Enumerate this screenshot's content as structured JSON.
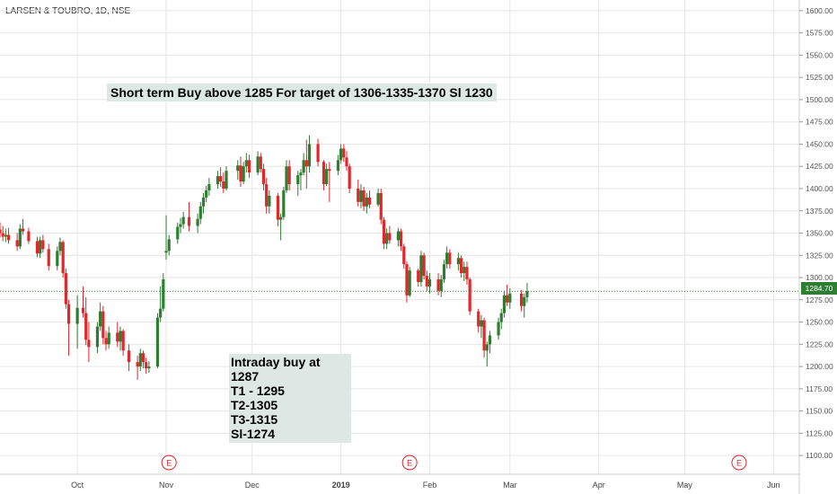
{
  "header": {
    "symbol": "LARSEN & TOUBRO, 1D, NSE"
  },
  "annotations": {
    "top_note": "Short term Buy above 1285 For target of 1306-1335-1370 Sl 1230",
    "intraday_lines": [
      "Intraday buy at 1287",
      "T1 - 1295",
      "T2-1305",
      "T3-1315",
      "Sl-1274"
    ]
  },
  "earnings_markers": [
    {
      "label": "E",
      "date": "2018-11-02"
    },
    {
      "label": "E",
      "date": "2019-01-25"
    },
    {
      "label": "E",
      "date": "2019-05-20"
    }
  ],
  "last_price": {
    "label": "1284.70",
    "value": 1284.7
  },
  "colors": {
    "up": "#2e7d32",
    "down": "#e3262a",
    "earnings": "#e3262a",
    "grid": "#e6e6e6"
  },
  "chart_data": {
    "type": "candlestick",
    "title": "",
    "ylim": [
      1085,
      1612
    ],
    "yticks": [
      "1100.00",
      "1125.00",
      "1150.00",
      "1175.00",
      "1200.00",
      "1225.00",
      "1250.00",
      "1275.00",
      "1300.00",
      "1325.00",
      "1350.00",
      "1375.00",
      "1400.00",
      "1425.00",
      "1450.00",
      "1475.00",
      "1500.00",
      "1525.00",
      "1550.00",
      "1575.00",
      "1600.00"
    ],
    "xticks": [
      {
        "label": "Oct",
        "date": "2018-10-01"
      },
      {
        "label": "Nov",
        "date": "2018-11-01"
      },
      {
        "label": "Dec",
        "date": "2018-12-01"
      },
      {
        "label": "2019",
        "date": "2019-01-01"
      },
      {
        "label": "Feb",
        "date": "2019-02-01"
      },
      {
        "label": "Mar",
        "date": "2019-03-01"
      },
      {
        "label": "Apr",
        "date": "2019-04-01"
      },
      {
        "label": "May",
        "date": "2019-05-01"
      },
      {
        "label": "Jun",
        "date": "2019-06-01"
      }
    ],
    "x_range": [
      "2018-09-04",
      "2019-06-10"
    ],
    "grid": true,
    "horizontal_line": 1284.7,
    "candles": [
      {
        "date": "2018-09-04",
        "o": 1354,
        "h": 1362,
        "l": 1345,
        "c": 1350
      },
      {
        "date": "2018-09-05",
        "o": 1350,
        "h": 1358,
        "l": 1341,
        "c": 1346
      },
      {
        "date": "2018-09-06",
        "o": 1346,
        "h": 1355,
        "l": 1340,
        "c": 1348
      },
      {
        "date": "2018-09-07",
        "o": 1348,
        "h": 1356,
        "l": 1338,
        "c": 1342
      },
      {
        "date": "2018-09-10",
        "o": 1342,
        "h": 1350,
        "l": 1330,
        "c": 1335
      },
      {
        "date": "2018-09-11",
        "o": 1335,
        "h": 1360,
        "l": 1332,
        "c": 1355
      },
      {
        "date": "2018-09-12",
        "o": 1355,
        "h": 1366,
        "l": 1348,
        "c": 1352
      },
      {
        "date": "2018-09-14",
        "o": 1352,
        "h": 1356,
        "l": 1338,
        "c": 1341
      },
      {
        "date": "2018-09-17",
        "o": 1341,
        "h": 1346,
        "l": 1323,
        "c": 1327
      },
      {
        "date": "2018-09-18",
        "o": 1327,
        "h": 1346,
        "l": 1322,
        "c": 1342
      },
      {
        "date": "2018-09-19",
        "o": 1342,
        "h": 1348,
        "l": 1328,
        "c": 1332
      },
      {
        "date": "2018-09-21",
        "o": 1332,
        "h": 1338,
        "l": 1308,
        "c": 1313
      },
      {
        "date": "2018-09-24",
        "o": 1313,
        "h": 1335,
        "l": 1308,
        "c": 1330
      },
      {
        "date": "2018-09-25",
        "o": 1330,
        "h": 1345,
        "l": 1325,
        "c": 1340
      },
      {
        "date": "2018-09-26",
        "o": 1340,
        "h": 1342,
        "l": 1300,
        "c": 1305
      },
      {
        "date": "2018-09-27",
        "o": 1305,
        "h": 1310,
        "l": 1265,
        "c": 1270
      },
      {
        "date": "2018-09-28",
        "o": 1270,
        "h": 1275,
        "l": 1212,
        "c": 1248
      },
      {
        "date": "2018-10-01",
        "o": 1248,
        "h": 1280,
        "l": 1220,
        "c": 1266
      },
      {
        "date": "2018-10-03",
        "o": 1266,
        "h": 1290,
        "l": 1255,
        "c": 1260
      },
      {
        "date": "2018-10-04",
        "o": 1260,
        "h": 1278,
        "l": 1224,
        "c": 1230
      },
      {
        "date": "2018-10-05",
        "o": 1230,
        "h": 1250,
        "l": 1205,
        "c": 1222
      },
      {
        "date": "2018-10-08",
        "o": 1222,
        "h": 1250,
        "l": 1215,
        "c": 1245
      },
      {
        "date": "2018-10-09",
        "o": 1245,
        "h": 1272,
        "l": 1240,
        "c": 1262
      },
      {
        "date": "2018-10-10",
        "o": 1262,
        "h": 1268,
        "l": 1225,
        "c": 1232
      },
      {
        "date": "2018-10-11",
        "o": 1232,
        "h": 1240,
        "l": 1218,
        "c": 1225
      },
      {
        "date": "2018-10-12",
        "o": 1225,
        "h": 1245,
        "l": 1220,
        "c": 1238
      },
      {
        "date": "2018-10-15",
        "o": 1238,
        "h": 1250,
        "l": 1222,
        "c": 1228
      },
      {
        "date": "2018-10-16",
        "o": 1228,
        "h": 1245,
        "l": 1218,
        "c": 1240
      },
      {
        "date": "2018-10-17",
        "o": 1240,
        "h": 1242,
        "l": 1212,
        "c": 1218
      },
      {
        "date": "2018-10-19",
        "o": 1218,
        "h": 1225,
        "l": 1195,
        "c": 1205
      },
      {
        "date": "2018-10-22",
        "o": 1205,
        "h": 1212,
        "l": 1185,
        "c": 1200
      },
      {
        "date": "2018-10-23",
        "o": 1200,
        "h": 1220,
        "l": 1195,
        "c": 1215
      },
      {
        "date": "2018-10-24",
        "o": 1215,
        "h": 1218,
        "l": 1198,
        "c": 1205
      },
      {
        "date": "2018-10-25",
        "o": 1205,
        "h": 1210,
        "l": 1192,
        "c": 1198
      },
      {
        "date": "2018-10-26",
        "o": 1198,
        "h": 1206,
        "l": 1193,
        "c": 1200
      },
      {
        "date": "2018-10-29",
        "o": 1200,
        "h": 1260,
        "l": 1198,
        "c": 1255
      },
      {
        "date": "2018-10-30",
        "o": 1255,
        "h": 1290,
        "l": 1250,
        "c": 1265
      },
      {
        "date": "2018-10-31",
        "o": 1265,
        "h": 1305,
        "l": 1262,
        "c": 1298
      },
      {
        "date": "2018-11-01",
        "o": 1328,
        "h": 1370,
        "l": 1320,
        "c": 1330
      },
      {
        "date": "2018-11-02",
        "o": 1330,
        "h": 1348,
        "l": 1325,
        "c": 1343
      },
      {
        "date": "2018-11-05",
        "o": 1343,
        "h": 1362,
        "l": 1338,
        "c": 1357
      },
      {
        "date": "2018-11-06",
        "o": 1357,
        "h": 1367,
        "l": 1350,
        "c": 1360
      },
      {
        "date": "2018-11-07",
        "o": 1360,
        "h": 1374,
        "l": 1355,
        "c": 1368
      },
      {
        "date": "2018-11-09",
        "o": 1368,
        "h": 1385,
        "l": 1352,
        "c": 1358
      },
      {
        "date": "2018-11-12",
        "o": 1358,
        "h": 1372,
        "l": 1350,
        "c": 1366
      },
      {
        "date": "2018-11-13",
        "o": 1366,
        "h": 1385,
        "l": 1360,
        "c": 1380
      },
      {
        "date": "2018-11-14",
        "o": 1380,
        "h": 1395,
        "l": 1372,
        "c": 1390
      },
      {
        "date": "2018-11-15",
        "o": 1390,
        "h": 1403,
        "l": 1385,
        "c": 1398
      },
      {
        "date": "2018-11-16",
        "o": 1398,
        "h": 1412,
        "l": 1392,
        "c": 1405
      },
      {
        "date": "2018-11-19",
        "o": 1405,
        "h": 1420,
        "l": 1400,
        "c": 1414
      },
      {
        "date": "2018-11-20",
        "o": 1414,
        "h": 1424,
        "l": 1402,
        "c": 1408
      },
      {
        "date": "2018-11-21",
        "o": 1408,
        "h": 1418,
        "l": 1395,
        "c": 1400
      },
      {
        "date": "2018-11-22",
        "o": 1400,
        "h": 1425,
        "l": 1398,
        "c": 1420
      },
      {
        "date": "2018-11-26",
        "o": 1420,
        "h": 1432,
        "l": 1410,
        "c": 1426
      },
      {
        "date": "2018-11-27",
        "o": 1426,
        "h": 1436,
        "l": 1402,
        "c": 1408
      },
      {
        "date": "2018-11-28",
        "o": 1408,
        "h": 1430,
        "l": 1405,
        "c": 1425
      },
      {
        "date": "2018-11-29",
        "o": 1425,
        "h": 1440,
        "l": 1418,
        "c": 1432
      },
      {
        "date": "2018-11-30",
        "o": 1432,
        "h": 1438,
        "l": 1412,
        "c": 1418
      },
      {
        "date": "2018-12-03",
        "o": 1418,
        "h": 1442,
        "l": 1415,
        "c": 1436
      },
      {
        "date": "2018-12-04",
        "o": 1436,
        "h": 1440,
        "l": 1418,
        "c": 1422
      },
      {
        "date": "2018-12-05",
        "o": 1422,
        "h": 1428,
        "l": 1398,
        "c": 1405
      },
      {
        "date": "2018-12-06",
        "o": 1405,
        "h": 1412,
        "l": 1372,
        "c": 1380
      },
      {
        "date": "2018-12-07",
        "o": 1380,
        "h": 1398,
        "l": 1372,
        "c": 1392
      },
      {
        "date": "2018-12-10",
        "o": 1392,
        "h": 1395,
        "l": 1358,
        "c": 1365
      },
      {
        "date": "2018-12-11",
        "o": 1365,
        "h": 1372,
        "l": 1342,
        "c": 1368
      },
      {
        "date": "2018-12-12",
        "o": 1368,
        "h": 1402,
        "l": 1365,
        "c": 1398
      },
      {
        "date": "2018-12-13",
        "o": 1398,
        "h": 1432,
        "l": 1395,
        "c": 1425
      },
      {
        "date": "2018-12-14",
        "o": 1425,
        "h": 1432,
        "l": 1398,
        "c": 1405
      },
      {
        "date": "2018-12-17",
        "o": 1405,
        "h": 1420,
        "l": 1392,
        "c": 1415
      },
      {
        "date": "2018-12-18",
        "o": 1415,
        "h": 1422,
        "l": 1398,
        "c": 1418
      },
      {
        "date": "2018-12-19",
        "o": 1418,
        "h": 1440,
        "l": 1415,
        "c": 1432
      },
      {
        "date": "2018-12-20",
        "o": 1432,
        "h": 1455,
        "l": 1400,
        "c": 1425
      },
      {
        "date": "2018-12-21",
        "o": 1425,
        "h": 1460,
        "l": 1418,
        "c": 1450
      },
      {
        "date": "2018-12-24",
        "o": 1450,
        "h": 1456,
        "l": 1425,
        "c": 1430
      },
      {
        "date": "2018-12-26",
        "o": 1430,
        "h": 1432,
        "l": 1398,
        "c": 1405
      },
      {
        "date": "2018-12-27",
        "o": 1405,
        "h": 1428,
        "l": 1403,
        "c": 1422
      },
      {
        "date": "2018-12-28",
        "o": 1422,
        "h": 1430,
        "l": 1385,
        "c": 1420
      },
      {
        "date": "2018-12-31",
        "o": 1420,
        "h": 1438,
        "l": 1415,
        "c": 1432
      },
      {
        "date": "2019-01-01",
        "o": 1432,
        "h": 1450,
        "l": 1428,
        "c": 1445
      },
      {
        "date": "2019-01-02",
        "o": 1445,
        "h": 1450,
        "l": 1430,
        "c": 1435
      },
      {
        "date": "2019-01-03",
        "o": 1435,
        "h": 1442,
        "l": 1420,
        "c": 1425
      },
      {
        "date": "2019-01-04",
        "o": 1425,
        "h": 1428,
        "l": 1395,
        "c": 1400
      },
      {
        "date": "2019-01-07",
        "o": 1400,
        "h": 1410,
        "l": 1380,
        "c": 1385
      },
      {
        "date": "2019-01-08",
        "o": 1385,
        "h": 1405,
        "l": 1378,
        "c": 1398
      },
      {
        "date": "2019-01-09",
        "o": 1398,
        "h": 1402,
        "l": 1375,
        "c": 1380
      },
      {
        "date": "2019-01-10",
        "o": 1380,
        "h": 1395,
        "l": 1372,
        "c": 1390
      },
      {
        "date": "2019-01-11",
        "o": 1390,
        "h": 1398,
        "l": 1378,
        "c": 1382
      },
      {
        "date": "2019-01-14",
        "o": 1382,
        "h": 1400,
        "l": 1380,
        "c": 1395
      },
      {
        "date": "2019-01-15",
        "o": 1395,
        "h": 1400,
        "l": 1360,
        "c": 1365
      },
      {
        "date": "2019-01-16",
        "o": 1365,
        "h": 1368,
        "l": 1332,
        "c": 1338
      },
      {
        "date": "2019-01-17",
        "o": 1338,
        "h": 1355,
        "l": 1332,
        "c": 1350
      },
      {
        "date": "2019-01-18",
        "o": 1350,
        "h": 1358,
        "l": 1338,
        "c": 1342
      },
      {
        "date": "2019-01-21",
        "o": 1342,
        "h": 1356,
        "l": 1335,
        "c": 1352
      },
      {
        "date": "2019-01-22",
        "o": 1352,
        "h": 1355,
        "l": 1330,
        "c": 1335
      },
      {
        "date": "2019-01-23",
        "o": 1335,
        "h": 1338,
        "l": 1310,
        "c": 1315
      },
      {
        "date": "2019-01-24",
        "o": 1315,
        "h": 1318,
        "l": 1272,
        "c": 1280
      },
      {
        "date": "2019-01-25",
        "o": 1280,
        "h": 1312,
        "l": 1278,
        "c": 1308
      },
      {
        "date": "2019-01-28",
        "o": 1308,
        "h": 1310,
        "l": 1290,
        "c": 1295
      },
      {
        "date": "2019-01-29",
        "o": 1295,
        "h": 1330,
        "l": 1290,
        "c": 1325
      },
      {
        "date": "2019-01-30",
        "o": 1325,
        "h": 1328,
        "l": 1298,
        "c": 1302
      },
      {
        "date": "2019-01-31",
        "o": 1302,
        "h": 1308,
        "l": 1285,
        "c": 1290
      },
      {
        "date": "2019-02-01",
        "o": 1290,
        "h": 1305,
        "l": 1282,
        "c": 1298
      },
      {
        "date": "2019-02-04",
        "o": 1298,
        "h": 1305,
        "l": 1280,
        "c": 1285
      },
      {
        "date": "2019-02-05",
        "o": 1285,
        "h": 1303,
        "l": 1278,
        "c": 1298
      },
      {
        "date": "2019-02-06",
        "o": 1298,
        "h": 1320,
        "l": 1294,
        "c": 1315
      },
      {
        "date": "2019-02-07",
        "o": 1315,
        "h": 1335,
        "l": 1310,
        "c": 1328
      },
      {
        "date": "2019-02-08",
        "o": 1328,
        "h": 1332,
        "l": 1310,
        "c": 1315
      },
      {
        "date": "2019-02-11",
        "o": 1315,
        "h": 1328,
        "l": 1308,
        "c": 1322
      },
      {
        "date": "2019-02-12",
        "o": 1322,
        "h": 1325,
        "l": 1300,
        "c": 1305
      },
      {
        "date": "2019-02-13",
        "o": 1305,
        "h": 1318,
        "l": 1296,
        "c": 1312
      },
      {
        "date": "2019-02-14",
        "o": 1312,
        "h": 1318,
        "l": 1292,
        "c": 1298
      },
      {
        "date": "2019-02-15",
        "o": 1298,
        "h": 1300,
        "l": 1258,
        "c": 1262
      },
      {
        "date": "2019-02-18",
        "o": 1262,
        "h": 1265,
        "l": 1238,
        "c": 1245
      },
      {
        "date": "2019-02-19",
        "o": 1245,
        "h": 1258,
        "l": 1232,
        "c": 1252
      },
      {
        "date": "2019-02-20",
        "o": 1252,
        "h": 1255,
        "l": 1210,
        "c": 1218
      },
      {
        "date": "2019-02-21",
        "o": 1218,
        "h": 1228,
        "l": 1200,
        "c": 1225
      },
      {
        "date": "2019-02-22",
        "o": 1225,
        "h": 1240,
        "l": 1215,
        "c": 1235
      },
      {
        "date": "2019-02-25",
        "o": 1235,
        "h": 1255,
        "l": 1230,
        "c": 1250
      },
      {
        "date": "2019-02-26",
        "o": 1250,
        "h": 1265,
        "l": 1242,
        "c": 1260
      },
      {
        "date": "2019-02-27",
        "o": 1260,
        "h": 1285,
        "l": 1255,
        "c": 1280
      },
      {
        "date": "2019-02-28",
        "o": 1280,
        "h": 1292,
        "l": 1268,
        "c": 1272
      },
      {
        "date": "2019-03-01",
        "o": 1272,
        "h": 1288,
        "l": 1265,
        "c": 1282
      },
      {
        "date": "2019-03-05",
        "o": 1282,
        "h": 1286,
        "l": 1262,
        "c": 1268
      },
      {
        "date": "2019-03-06",
        "o": 1268,
        "h": 1282,
        "l": 1255,
        "c": 1278
      },
      {
        "date": "2019-03-07",
        "o": 1278,
        "h": 1294,
        "l": 1272,
        "c": 1284.7
      }
    ]
  }
}
